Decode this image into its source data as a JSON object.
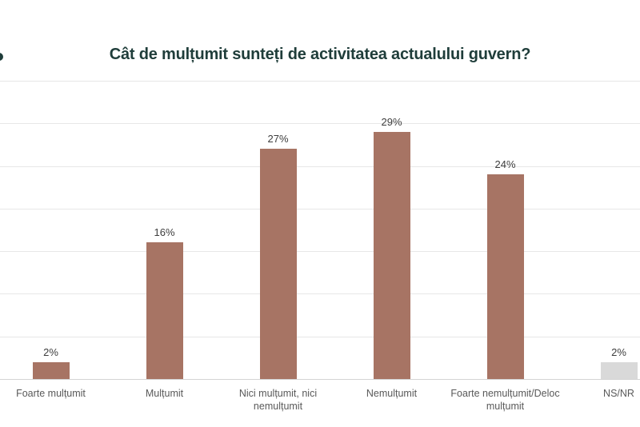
{
  "title": {
    "text": "Cât de mulțumit sunteți de activitatea actualului guvern?",
    "color": "#1f3d3a"
  },
  "decor": {
    "left_edge_mark": "partial-dot",
    "left_edge_mark_color": "#1f3d3a"
  },
  "chart_data": {
    "type": "bar",
    "title": "Cât de mulțumit sunteți de activitatea actualului guvern?",
    "categories": [
      "Foarte mulțumit",
      "Mulțumit",
      "Nici mulțumit, nici nemulțumit",
      "Nemulțumit",
      "Foarte nemulțumit/Deloc mulțumit",
      "NS/NR"
    ],
    "values": [
      2,
      16,
      27,
      29,
      24,
      2
    ],
    "value_labels": [
      "2%",
      "16%",
      "27%",
      "29%",
      "24%",
      "2%"
    ],
    "bar_colors": [
      "#a77464",
      "#a77464",
      "#a77464",
      "#a77464",
      "#a77464",
      "#d9d9d9"
    ],
    "xlabel": "",
    "ylabel": "",
    "ylim": [
      0,
      35
    ],
    "grid": true,
    "grid_step": 5,
    "grid_color": "#e7e7e7",
    "axis_line_color": "#d4d4d4",
    "value_label_color": "#3d3d3d",
    "category_label_color": "#595959",
    "legend_position": "none",
    "y_tick_labels_visible": false
  }
}
